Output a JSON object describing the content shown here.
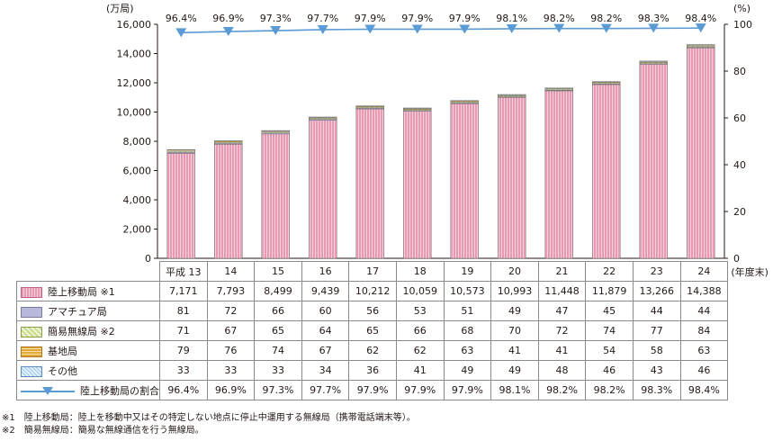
{
  "chart_data": {
    "type": "bar",
    "stacked": true,
    "y_left_unit": "(万局)",
    "y_right_unit": "(%)",
    "x_unit": "(年度末)",
    "y_left_ticks": [
      "16,000",
      "14,000",
      "12,000",
      "10,000",
      "8,000",
      "6,000",
      "4,000",
      "2,000",
      "0"
    ],
    "y_left_tick_values": [
      16000,
      14000,
      12000,
      10000,
      8000,
      6000,
      4000,
      2000,
      0
    ],
    "y_right_ticks": [
      "100",
      "80",
      "60",
      "40",
      "20",
      "0"
    ],
    "y_right_tick_values": [
      100,
      80,
      60,
      40,
      20,
      0
    ],
    "ylim_left": [
      0,
      16000
    ],
    "ylim_right": [
      0,
      100
    ],
    "categories": [
      "平成 13",
      "14",
      "15",
      "16",
      "17",
      "18",
      "19",
      "20",
      "21",
      "22",
      "23",
      "24"
    ],
    "series": [
      {
        "name": "陸上移動局 ※1",
        "key": "mobile",
        "color": "#e99ab3",
        "values": [
          7171,
          7793,
          8499,
          9439,
          10212,
          10059,
          10573,
          10993,
          11448,
          11879,
          13266,
          14388
        ],
        "labels": [
          "7,171",
          "7,793",
          "8,499",
          "9,439",
          "10,212",
          "10,059",
          "10,573",
          "10,993",
          "11,448",
          "11,879",
          "13,266",
          "14,388"
        ]
      },
      {
        "name": "アマチュア局",
        "key": "amateur",
        "color": "#b8b8dd",
        "values": [
          81,
          72,
          66,
          60,
          56,
          53,
          51,
          49,
          47,
          45,
          44,
          44
        ],
        "labels": [
          "81",
          "72",
          "66",
          "60",
          "56",
          "53",
          "51",
          "49",
          "47",
          "45",
          "44",
          "44"
        ]
      },
      {
        "name": "簡易無線局 ※2",
        "key": "simple",
        "color": "#c8dc8c",
        "values": [
          71,
          67,
          65,
          64,
          65,
          66,
          68,
          70,
          72,
          74,
          77,
          84
        ],
        "labels": [
          "71",
          "67",
          "65",
          "64",
          "65",
          "66",
          "68",
          "70",
          "72",
          "74",
          "77",
          "84"
        ]
      },
      {
        "name": "基地局",
        "key": "base",
        "color": "#e3a83a",
        "values": [
          79,
          76,
          74,
          67,
          62,
          62,
          63,
          41,
          41,
          54,
          58,
          63
        ],
        "labels": [
          "79",
          "76",
          "74",
          "67",
          "62",
          "62",
          "63",
          "41",
          "41",
          "54",
          "58",
          "63"
        ]
      },
      {
        "name": "その他",
        "key": "other",
        "color": "#9cc8ec",
        "values": [
          33,
          33,
          33,
          34,
          36,
          41,
          49,
          49,
          48,
          46,
          43,
          46
        ],
        "labels": [
          "33",
          "33",
          "33",
          "34",
          "36",
          "41",
          "49",
          "49",
          "48",
          "46",
          "43",
          "46"
        ]
      }
    ],
    "line_series": {
      "name": "陸上移動局の割合",
      "axis": "right",
      "color": "#5b9bd5",
      "values": [
        96.4,
        96.9,
        97.3,
        97.7,
        97.9,
        97.9,
        97.9,
        98.1,
        98.2,
        98.2,
        98.3,
        98.4
      ],
      "labels": [
        "96.4%",
        "96.9%",
        "97.3%",
        "97.7%",
        "97.9%",
        "97.9%",
        "97.9%",
        "98.1%",
        "98.2%",
        "98.2%",
        "98.3%",
        "98.4%"
      ]
    }
  },
  "footnotes": {
    "note1": "※1　陸上移動局：陸上を移動中又はその特定しない地点に停止中運用する無線局（携帯電話端末等）。",
    "note2": "※2　簡易無線局：簡易な無線通信を行う無線局。"
  }
}
